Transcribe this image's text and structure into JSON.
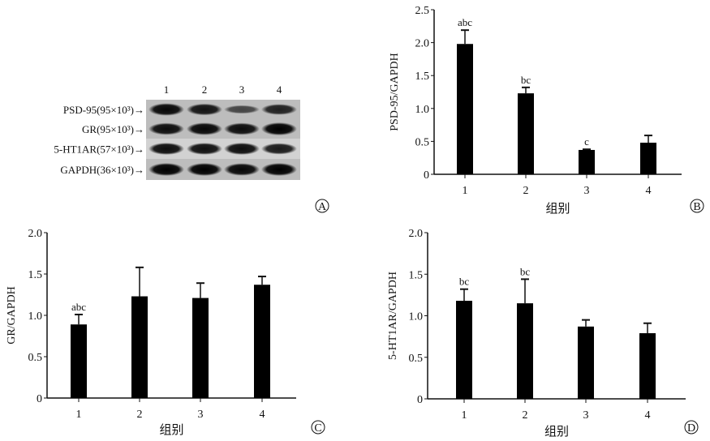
{
  "panel_a": {
    "label": "A",
    "lanes": [
      "1",
      "2",
      "3",
      "4"
    ],
    "rows": [
      {
        "label": "PSD-95(95×10³)→",
        "intensity": [
          0.95,
          0.85,
          0.45,
          0.75
        ]
      },
      {
        "label": "GR(95×10³)→",
        "intensity": [
          0.9,
          0.95,
          0.9,
          1.0
        ]
      },
      {
        "label": "5-HT1AR(57×10³)→",
        "intensity": [
          0.9,
          0.88,
          0.9,
          0.8
        ]
      },
      {
        "label": "GAPDH(36×10³)→",
        "intensity": [
          1.0,
          1.0,
          0.95,
          1.0
        ]
      }
    ]
  },
  "chart_data": [
    {
      "panel": "B",
      "type": "bar",
      "categories": [
        "1",
        "2",
        "3",
        "4"
      ],
      "values": [
        1.98,
        1.23,
        0.37,
        0.48
      ],
      "errors": [
        0.21,
        0.09,
        0.01,
        0.11
      ],
      "annotations": [
        "abc",
        "bc",
        "c",
        ""
      ],
      "xlabel": "组别",
      "ylabel": "PSD-95/GAPDH",
      "ylim": [
        0,
        2.5
      ],
      "yticks": [
        "0",
        "0.5",
        "1.0",
        "1.5",
        "2.0",
        "2.5"
      ],
      "bar_color": "#000000"
    },
    {
      "panel": "C",
      "type": "bar",
      "categories": [
        "1",
        "2",
        "3",
        "4"
      ],
      "values": [
        0.89,
        1.23,
        1.21,
        1.37
      ],
      "errors": [
        0.12,
        0.35,
        0.18,
        0.1
      ],
      "annotations": [
        "abc",
        "",
        "",
        ""
      ],
      "xlabel": "组别",
      "ylabel": "GR/GAPDH",
      "ylim": [
        0,
        2.0
      ],
      "yticks": [
        "0",
        "0.5",
        "1.0",
        "1.5",
        "2.0"
      ],
      "bar_color": "#000000"
    },
    {
      "panel": "D",
      "type": "bar",
      "categories": [
        "1",
        "2",
        "3",
        "4"
      ],
      "values": [
        1.18,
        1.15,
        0.87,
        0.79
      ],
      "errors": [
        0.14,
        0.29,
        0.08,
        0.12
      ],
      "annotations": [
        "bc",
        "bc",
        "",
        ""
      ],
      "xlabel": "组别",
      "ylabel": "5-HT1AR/GAPDH",
      "ylim": [
        0,
        2.0
      ],
      "yticks": [
        "0",
        "0.5",
        "1.0",
        "1.5",
        "2.0"
      ],
      "bar_color": "#000000"
    }
  ]
}
